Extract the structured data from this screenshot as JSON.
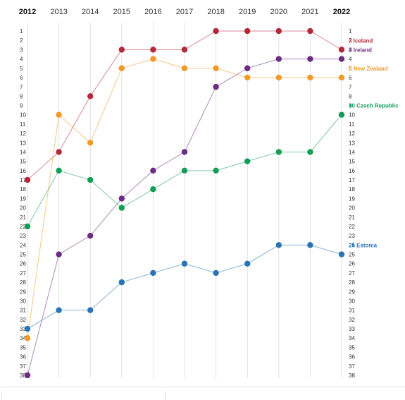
{
  "chart_data": {
    "type": "line",
    "x": [
      "2012",
      "2013",
      "2014",
      "2015",
      "2016",
      "2017",
      "2018",
      "2019",
      "2020",
      "2021",
      "2022"
    ],
    "bold_years": [
      "2012",
      "2022"
    ],
    "ylim": [
      1,
      38
    ],
    "y_ticks": [
      1,
      2,
      3,
      4,
      5,
      6,
      7,
      8,
      9,
      10,
      11,
      12,
      13,
      14,
      15,
      16,
      17,
      18,
      19,
      20,
      21,
      22,
      23,
      24,
      25,
      26,
      27,
      28,
      29,
      30,
      31,
      32,
      33,
      34,
      35,
      36,
      37,
      38
    ],
    "y_inverted": true,
    "grid": true,
    "series": [
      {
        "name": "Iceland",
        "color": "#b5283b",
        "end_label": "3 Iceland",
        "values": [
          17,
          14,
          8,
          3,
          3,
          3,
          1,
          1,
          1,
          1,
          3
        ]
      },
      {
        "name": "Ireland",
        "color": "#6b2c83",
        "end_label": "4 Ireland",
        "values": [
          38,
          25,
          23,
          19,
          16,
          14,
          7,
          5,
          4,
          4,
          4
        ]
      },
      {
        "name": "New Zealand",
        "color": "#f19a2a",
        "end_label": "6 New Zealand",
        "values": [
          34,
          10,
          13,
          5,
          4,
          5,
          5,
          6,
          6,
          6,
          6
        ]
      },
      {
        "name": "Czech Republic",
        "color": "#139d57",
        "end_label": "10 Czech Republic",
        "values": [
          22,
          16,
          17,
          20,
          18,
          16,
          16,
          15,
          14,
          14,
          10
        ]
      },
      {
        "name": "Estonia",
        "color": "#2a74b4",
        "end_label": "25 Estonia",
        "values": [
          33,
          31,
          31,
          28,
          27,
          26,
          27,
          26,
          24,
          24,
          25
        ]
      }
    ]
  }
}
